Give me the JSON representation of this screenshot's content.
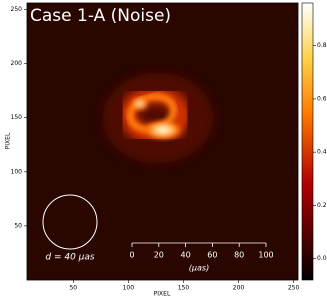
{
  "chart_data": {
    "type": "image",
    "title": "Case 1-A (Noise)",
    "xlabel": "PIXEL",
    "ylabel": "PIXEL",
    "xlim": [
      8,
      254
    ],
    "xticks": [
      50,
      100,
      150,
      200,
      250
    ],
    "ylim": [
      0,
      256
    ],
    "yticks": [
      50,
      100,
      150,
      200,
      250
    ],
    "colormap": "afmhot",
    "colorbar": {
      "lim": [
        -0.08,
        0.96
      ],
      "ticks": [
        {
          "value": 0,
          "label": "0.0"
        },
        0.2,
        0.4,
        0.6,
        0.8
      ]
    },
    "circle_label": "d = 40 μas",
    "scale_bar": {
      "lim": [
        0,
        100
      ],
      "ticks": [
        0,
        20,
        40,
        60,
        80,
        100
      ],
      "label": "(μas)"
    }
  }
}
